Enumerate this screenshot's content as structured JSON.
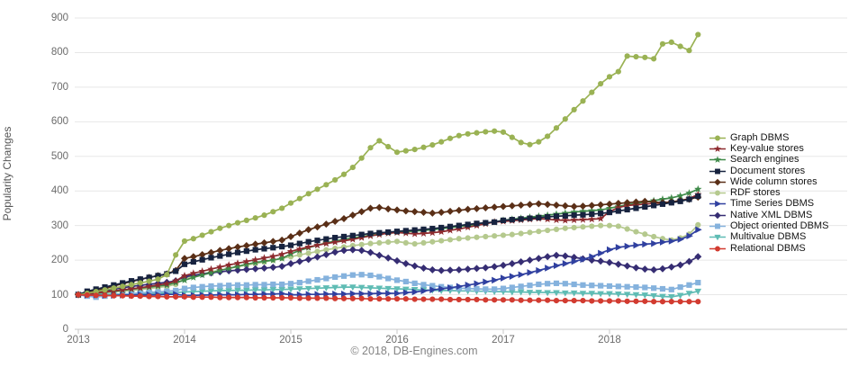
{
  "footer": "© 2018, DB-Engines.com",
  "chart_data": {
    "type": "line",
    "title": "",
    "xlabel": "",
    "ylabel": "Popularity Changes",
    "ylim": [
      0,
      900
    ],
    "yticks": [
      0,
      100,
      200,
      300,
      400,
      500,
      600,
      700,
      800,
      900
    ],
    "xticks": [
      "2013",
      "2014",
      "2015",
      "2016",
      "2017",
      "2018"
    ],
    "x_start": "2013-01",
    "x_end": "2018-11",
    "x_unit": "month",
    "grid": true,
    "legend_position": "right",
    "series": [
      {
        "name": "Graph DBMS",
        "color": "#9ab254",
        "marker": "circle",
        "values": [
          100,
          104,
          109,
          114,
          119,
          124,
          129,
          134,
          139,
          145,
          158,
          215,
          255,
          262,
          272,
          282,
          292,
          300,
          308,
          315,
          322,
          330,
          340,
          350,
          365,
          378,
          392,
          405,
          418,
          432,
          448,
          468,
          495,
          525,
          545,
          528,
          512,
          516,
          520,
          526,
          533,
          542,
          552,
          560,
          565,
          568,
          571,
          573,
          570,
          555,
          540,
          534,
          542,
          558,
          582,
          608,
          635,
          660,
          685,
          710,
          730,
          745,
          790,
          788,
          786,
          782,
          825,
          830,
          818,
          806,
          852
        ]
      },
      {
        "name": "Key-value stores",
        "color": "#8d2a2e",
        "marker": "star",
        "values": [
          100,
          102,
          105,
          108,
          111,
          114,
          117,
          120,
          124,
          128,
          132,
          140,
          155,
          162,
          168,
          174,
          180,
          186,
          191,
          196,
          201,
          206,
          211,
          217,
          225,
          232,
          238,
          243,
          248,
          252,
          256,
          260,
          265,
          270,
          274,
          278,
          280,
          278,
          276,
          277,
          279,
          282,
          286,
          290,
          295,
          300,
          305,
          310,
          312,
          314,
          316,
          318,
          320,
          318,
          316,
          315,
          316,
          317,
          318,
          320,
          340,
          352,
          358,
          360,
          362,
          364,
          366,
          368,
          372,
          378,
          390
        ]
      },
      {
        "name": "Search engines",
        "color": "#3f8a49",
        "marker": "star",
        "values": [
          100,
          102,
          104,
          107,
          110,
          113,
          116,
          119,
          122,
          125,
          128,
          135,
          142,
          150,
          157,
          163,
          170,
          176,
          182,
          188,
          193,
          197,
          200,
          205,
          218,
          228,
          236,
          243,
          250,
          255,
          260,
          264,
          268,
          272,
          275,
          278,
          280,
          282,
          284,
          286,
          288,
          291,
          294,
          297,
          300,
          303,
          306,
          310,
          315,
          318,
          321,
          324,
          327,
          330,
          333,
          336,
          339,
          341,
          343,
          345,
          350,
          355,
          360,
          364,
          368,
          372,
          376,
          380,
          386,
          394,
          405
        ]
      },
      {
        "name": "Document stores",
        "color": "#17233f",
        "marker": "square",
        "values": [
          100,
          110,
          116,
          122,
          128,
          134,
          140,
          145,
          150,
          155,
          160,
          168,
          188,
          195,
          201,
          207,
          212,
          217,
          222,
          226,
          230,
          233,
          236,
          239,
          243,
          248,
          253,
          257,
          261,
          265,
          268,
          271,
          274,
          277,
          279,
          281,
          283,
          285,
          287,
          289,
          291,
          294,
          297,
          300,
          303,
          306,
          308,
          310,
          315,
          317,
          319,
          321,
          323,
          325,
          327,
          328,
          330,
          331,
          333,
          335,
          338,
          342,
          346,
          350,
          354,
          358,
          362,
          366,
          370,
          376,
          385
        ]
      },
      {
        "name": "Wide column stores",
        "color": "#5a2f17",
        "marker": "diamond",
        "values": [
          100,
          106,
          112,
          118,
          125,
          132,
          138,
          144,
          150,
          155,
          160,
          170,
          205,
          210,
          216,
          222,
          228,
          233,
          238,
          242,
          246,
          250,
          254,
          258,
          268,
          278,
          288,
          296,
          304,
          312,
          320,
          330,
          340,
          350,
          352,
          348,
          345,
          342,
          340,
          338,
          336,
          338,
          341,
          344,
          347,
          349,
          351,
          353,
          355,
          357,
          359,
          361,
          363,
          361,
          359,
          357,
          355,
          356,
          358,
          360,
          362,
          364,
          366,
          368,
          370,
          368,
          366,
          368,
          372,
          376,
          382
        ]
      },
      {
        "name": "RDF stores",
        "color": "#b5c98e",
        "marker": "circle",
        "values": [
          100,
          102,
          104,
          106,
          108,
          110,
          112,
          115,
          118,
          121,
          124,
          130,
          148,
          154,
          160,
          166,
          171,
          176,
          181,
          186,
          190,
          195,
          200,
          205,
          210,
          215,
          220,
          225,
          230,
          234,
          238,
          242,
          245,
          248,
          250,
          252,
          254,
          250,
          247,
          250,
          253,
          256,
          259,
          262,
          264,
          266,
          268,
          270,
          272,
          274,
          277,
          280,
          283,
          286,
          289,
          292,
          294,
          296,
          298,
          300,
          300,
          298,
          290,
          282,
          275,
          268,
          262,
          258,
          264,
          275,
          302
        ]
      },
      {
        "name": "Time Series DBMS",
        "color": "#3040a0",
        "marker": "triangle-right",
        "values": [
          100,
          99,
          99,
          98,
          98,
          99,
          99,
          100,
          100,
          100,
          101,
          101,
          98,
          98,
          99,
          99,
          100,
          100,
          100,
          101,
          101,
          102,
          102,
          103,
          100,
          100,
          101,
          101,
          102,
          102,
          102,
          103,
          103,
          103,
          104,
          104,
          104,
          106,
          108,
          111,
          114,
          117,
          120,
          124,
          128,
          132,
          137,
          142,
          148,
          153,
          158,
          164,
          170,
          177,
          184,
          190,
          196,
          202,
          210,
          220,
          230,
          237,
          240,
          243,
          246,
          248,
          252,
          255,
          260,
          270,
          288
        ]
      },
      {
        "name": "Native XML DBMS",
        "color": "#362d73",
        "marker": "diamond",
        "values": [
          100,
          104,
          108,
          112,
          116,
          120,
          124,
          127,
          130,
          133,
          136,
          140,
          152,
          156,
          160,
          163,
          166,
          169,
          171,
          173,
          175,
          177,
          179,
          182,
          190,
          196,
          202,
          209,
          216,
          223,
          228,
          230,
          228,
          222,
          214,
          206,
          198,
          190,
          183,
          177,
          172,
          170,
          171,
          172,
          174,
          176,
          178,
          181,
          185,
          190,
          195,
          200,
          205,
          210,
          214,
          212,
          208,
          204,
          200,
          197,
          193,
          188,
          183,
          178,
          174,
          172,
          175,
          180,
          186,
          196,
          210
        ]
      },
      {
        "name": "Object oriented DBMS",
        "color": "#85b2dd",
        "marker": "square",
        "values": [
          100,
          96,
          93,
          96,
          99,
          101,
          103,
          105,
          107,
          108,
          110,
          112,
          118,
          121,
          123,
          125,
          126,
          127,
          128,
          128,
          129,
          129,
          130,
          130,
          132,
          135,
          139,
          143,
          147,
          151,
          154,
          157,
          158,
          156,
          152,
          147,
          142,
          138,
          133,
          129,
          126,
          123,
          121,
          119,
          118,
          117,
          116,
          116,
          118,
          121,
          124,
          127,
          130,
          132,
          133,
          132,
          130,
          128,
          127,
          126,
          125,
          124,
          123,
          122,
          121,
          119,
          117,
          115,
          122,
          128,
          135
        ]
      },
      {
        "name": "Multivalue DBMS",
        "color": "#5fbcb4",
        "marker": "triangle-down",
        "values": [
          100,
          100,
          101,
          101,
          102,
          102,
          103,
          103,
          104,
          104,
          105,
          106,
          108,
          109,
          110,
          111,
          112,
          112,
          113,
          113,
          114,
          114,
          115,
          115,
          116,
          117,
          118,
          119,
          120,
          121,
          122,
          122,
          121,
          120,
          119,
          118,
          117,
          116,
          115,
          114,
          113,
          112,
          112,
          111,
          111,
          110,
          110,
          109,
          109,
          108,
          108,
          107,
          107,
          106,
          106,
          105,
          105,
          104,
          104,
          103,
          103,
          102,
          101,
          100,
          99,
          97,
          95,
          94,
          98,
          104,
          110
        ]
      },
      {
        "name": "Relational DBMS",
        "color": "#d23b30",
        "marker": "circle",
        "values": [
          100,
          99,
          98,
          98,
          97,
          97,
          96,
          96,
          95,
          95,
          94,
          94,
          94,
          93,
          93,
          93,
          92,
          92,
          92,
          92,
          91,
          91,
          91,
          91,
          91,
          90,
          90,
          90,
          90,
          89,
          89,
          89,
          89,
          88,
          88,
          88,
          88,
          88,
          87,
          87,
          87,
          87,
          86,
          86,
          86,
          86,
          85,
          85,
          85,
          85,
          84,
          84,
          84,
          84,
          83,
          83,
          83,
          83,
          82,
          82,
          82,
          82,
          81,
          81,
          81,
          80,
          80,
          80,
          80,
          80,
          80
        ]
      }
    ]
  }
}
